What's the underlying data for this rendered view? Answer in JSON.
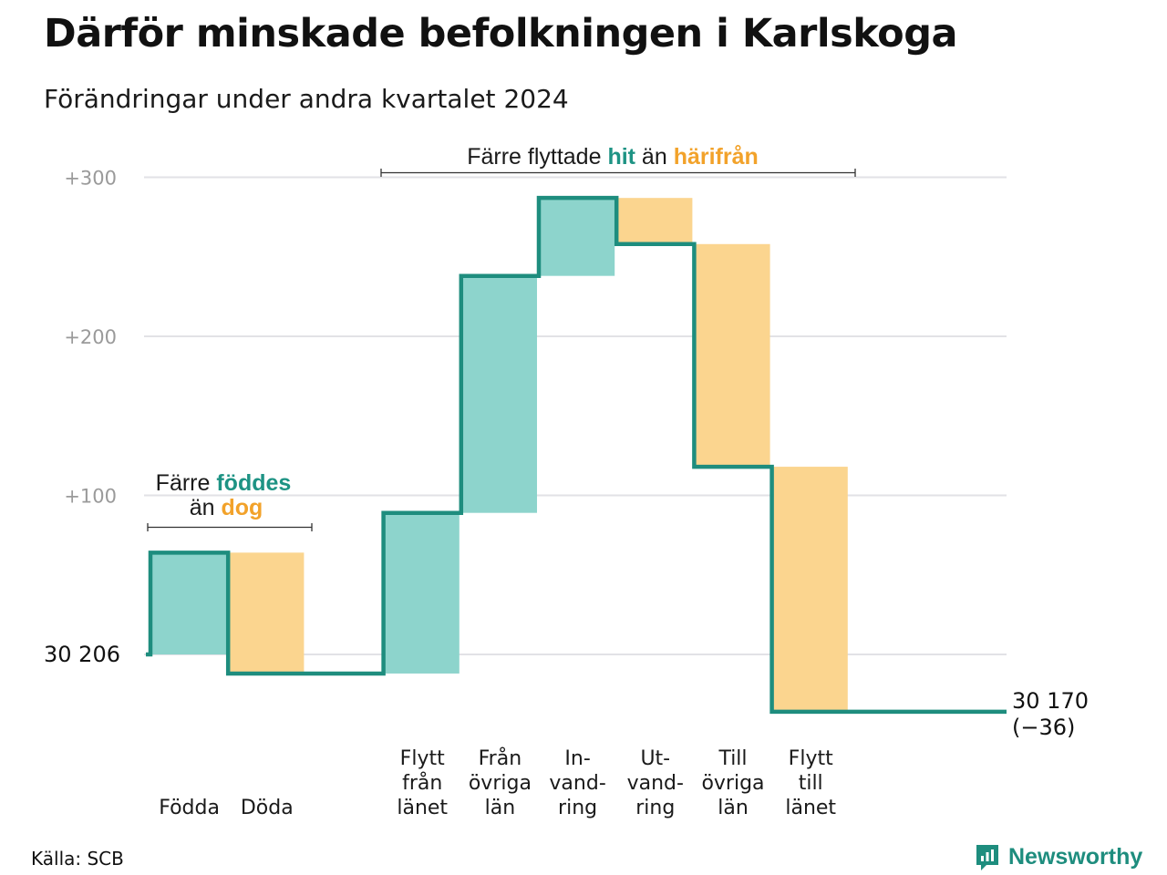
{
  "title": "Därför minskade befolkningen i Karlskoga",
  "subtitle": "Förändringar under andra kvartalet 2024",
  "source": "Källa: SCB",
  "brand": "Newsworthy",
  "colors": {
    "increase": "#8dd4cc",
    "decrease": "#fbd58f",
    "line": "#1e8d7e",
    "hit": "#1e9384",
    "away": "#f2a22a",
    "grid": "#e2e2e6"
  },
  "annotations": {
    "births": {
      "line1_pre": "Färre ",
      "line1_hi": "föddes",
      "line2_pre": "än ",
      "line2_hi": "dog"
    },
    "migration": {
      "pre": "Färre flyttade ",
      "hi1": "hit",
      "mid": " än ",
      "hi2": "härifrån"
    }
  },
  "labels": {
    "start": "30  206",
    "end_line1": "30 170",
    "end_line2": "(−36)"
  },
  "chart_data": {
    "type": "waterfall",
    "start_population": 30206,
    "end_population": 30170,
    "net_change": -36,
    "yticks": [
      {
        "value": 100,
        "label": "+100"
      },
      {
        "value": 200,
        "label": "+200"
      },
      {
        "value": 300,
        "label": "+300"
      }
    ],
    "ylim": [
      -50,
      310
    ],
    "steps": [
      {
        "label": [
          "Födda"
        ],
        "change": 64,
        "kind": "increase"
      },
      {
        "label": [
          "Döda"
        ],
        "change": -76,
        "kind": "decrease"
      },
      {
        "label": [],
        "change": 0,
        "kind": "gap"
      },
      {
        "label": [
          "Flytt",
          "från",
          "länet"
        ],
        "change": 101,
        "kind": "increase"
      },
      {
        "label": [
          "Från",
          "övriga",
          "län"
        ],
        "change": 149,
        "kind": "increase"
      },
      {
        "label": [
          "In-",
          "vand-",
          "ring"
        ],
        "change": 49,
        "kind": "increase"
      },
      {
        "label": [
          "Ut-",
          "vand-",
          "ring"
        ],
        "change": -29,
        "kind": "decrease"
      },
      {
        "label": [
          "Till",
          "övriga",
          "län"
        ],
        "change": -140,
        "kind": "decrease"
      },
      {
        "label": [
          "Flytt",
          "till",
          "länet"
        ],
        "change": -154,
        "kind": "decrease"
      },
      {
        "label": [],
        "change": 0,
        "kind": "gap"
      }
    ]
  }
}
